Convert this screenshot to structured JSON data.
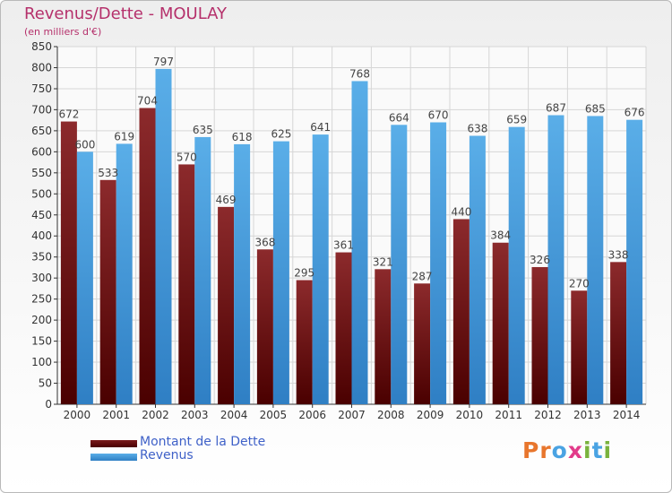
{
  "title": "Revenus/Dette - MOULAY",
  "subtitle": "(en milliers d'€)",
  "logo_text": "Proxiti",
  "colors": {
    "debt": "#7a1a1c",
    "revenue": "#4aa3e3",
    "title": "#b5306b",
    "legend_text": "#3f61c8",
    "logo": [
      "#e8762d",
      "#e8762d",
      "#4aa3e3",
      "#e23b8a",
      "#7ab33e",
      "#4aa3e3",
      "#7ab33e"
    ]
  },
  "legend": [
    {
      "label": "Montant de la Dette",
      "color": "#6b1214"
    },
    {
      "label": "Revenus",
      "color": "#4aa3e3"
    }
  ],
  "chart_data": {
    "type": "bar",
    "title": "Revenus/Dette - MOULAY",
    "subtitle": "(en milliers d'€)",
    "categories": [
      "2000",
      "2001",
      "2002",
      "2003",
      "2004",
      "2005",
      "2006",
      "2007",
      "2008",
      "2009",
      "2010",
      "2011",
      "2012",
      "2013",
      "2014"
    ],
    "series": [
      {
        "name": "Montant de la Dette",
        "values": [
          672,
          533,
          704,
          570,
          469,
          368,
          295,
          361,
          321,
          287,
          440,
          384,
          326,
          270,
          338
        ]
      },
      {
        "name": "Revenus",
        "values": [
          600,
          619,
          797,
          635,
          618,
          625,
          641,
          768,
          664,
          670,
          638,
          659,
          687,
          685,
          676
        ]
      }
    ],
    "ylim": [
      0,
      850
    ],
    "yticks": [
      0,
      50,
      100,
      150,
      200,
      250,
      300,
      350,
      400,
      450,
      500,
      550,
      600,
      650,
      700,
      750,
      800,
      850
    ],
    "grid": true,
    "legend_position": "bottom-left",
    "data_labels": true
  }
}
